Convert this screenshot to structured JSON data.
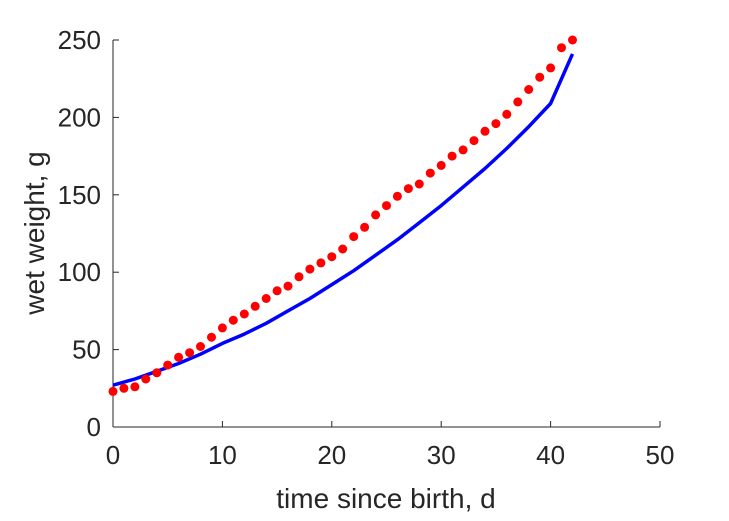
{
  "chart_data": {
    "type": "scatter",
    "title": "",
    "xlabel": "time since birth, d",
    "ylabel": "wet weight, g",
    "xlim": [
      0,
      50
    ],
    "ylim": [
      0,
      250
    ],
    "xticks": [
      0,
      10,
      20,
      30,
      40,
      50
    ],
    "yticks": [
      0,
      50,
      100,
      150,
      200,
      250
    ],
    "grid": false,
    "series": [
      {
        "type": "scatter",
        "color": "#ff0000",
        "x": [
          0,
          1,
          2,
          3,
          4,
          5,
          6,
          7,
          8,
          9,
          10,
          11,
          12,
          13,
          14,
          15,
          16,
          17,
          18,
          19,
          20,
          21,
          22,
          23,
          24,
          25,
          26,
          27,
          28,
          29,
          30,
          31,
          32,
          33,
          34,
          35,
          36,
          37,
          38,
          39,
          40,
          41,
          42
        ],
        "y": [
          23,
          25,
          26,
          31,
          35,
          40,
          45,
          48,
          52,
          58,
          64,
          69,
          73,
          78,
          83,
          88,
          91,
          97,
          102,
          106,
          110,
          115,
          123,
          129,
          137,
          143,
          149,
          154,
          157,
          164,
          169,
          175,
          179,
          185,
          191,
          196,
          202,
          210,
          218,
          226,
          232,
          245,
          250
        ]
      },
      {
        "type": "line",
        "color": "#0000ff",
        "x": [
          0,
          2,
          4,
          6,
          8,
          10,
          12,
          14,
          16,
          18,
          20,
          22,
          24,
          26,
          28,
          30,
          32,
          34,
          36,
          38,
          40,
          42
        ],
        "y": [
          27,
          31,
          36,
          41,
          47,
          54,
          60,
          67,
          75,
          83,
          92,
          101,
          111,
          121,
          132,
          143,
          155,
          167,
          180,
          194,
          209,
          241
        ]
      }
    ]
  }
}
